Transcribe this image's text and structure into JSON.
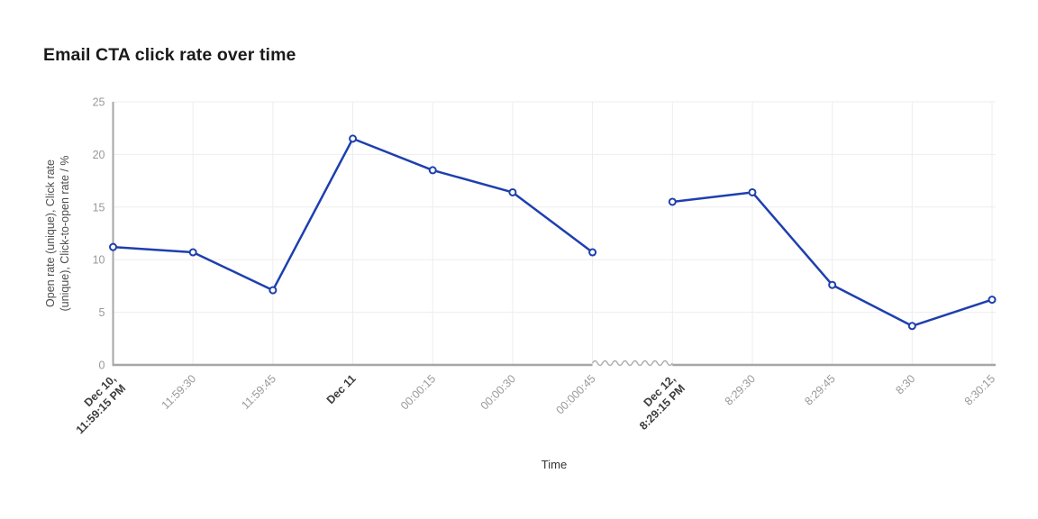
{
  "header": {
    "title": "Email CTA click rate over time"
  },
  "chart_data": {
    "type": "line",
    "title": "Email CTA click rate over time",
    "xlabel": "Time",
    "ylabel": "Open rate (unique), Click rate (unique), Click-to-open rate / %",
    "ylabel_lines": [
      "Open rate (unique), Click rate",
      "(unique), Click-to-open rate / %"
    ],
    "ylim": [
      0,
      25
    ],
    "yticks": [
      0,
      5,
      10,
      15,
      20,
      25
    ],
    "grid": true,
    "legend_position": "none",
    "x_axis_break": {
      "after_index": 6,
      "style": "zigzag"
    },
    "categories": [
      {
        "lines": [
          "Dec 10,",
          "11:59:15 PM"
        ],
        "emphasis": true
      },
      {
        "lines": [
          "11:59:30"
        ],
        "emphasis": false
      },
      {
        "lines": [
          "11:59:45"
        ],
        "emphasis": false
      },
      {
        "lines": [
          "Dec 11"
        ],
        "emphasis": true
      },
      {
        "lines": [
          "00:00:15"
        ],
        "emphasis": false
      },
      {
        "lines": [
          "00:00:30"
        ],
        "emphasis": false
      },
      {
        "lines": [
          "00:000:45"
        ],
        "emphasis": false
      },
      {
        "lines": [
          "Dec 12,",
          "8:29:15 PM"
        ],
        "emphasis": true
      },
      {
        "lines": [
          "8:29:30"
        ],
        "emphasis": false
      },
      {
        "lines": [
          "8:29:45"
        ],
        "emphasis": false
      },
      {
        "lines": [
          "8:30"
        ],
        "emphasis": false
      },
      {
        "lines": [
          "8:30:15"
        ],
        "emphasis": false
      }
    ],
    "series": [
      {
        "name": "Email CTA click rate",
        "values": [
          11.2,
          10.7,
          7.1,
          21.5,
          18.5,
          16.4,
          10.7,
          15.5,
          16.4,
          7.6,
          3.7,
          6.2
        ],
        "segments": [
          [
            0,
            6
          ],
          [
            7,
            11
          ]
        ]
      }
    ],
    "colors": {
      "line": "#1e3fae",
      "marker_fill": "#ffffff",
      "grid": "#ededed",
      "axis": "#a6a6a6",
      "axis_break": "#adadad",
      "tick_label": "#999999",
      "tick_label_emphasis": "#3d3d3d",
      "y_axis_title": "#4d4d4d",
      "title": "#1a1a1a",
      "x_axis_title": "#333333"
    }
  }
}
